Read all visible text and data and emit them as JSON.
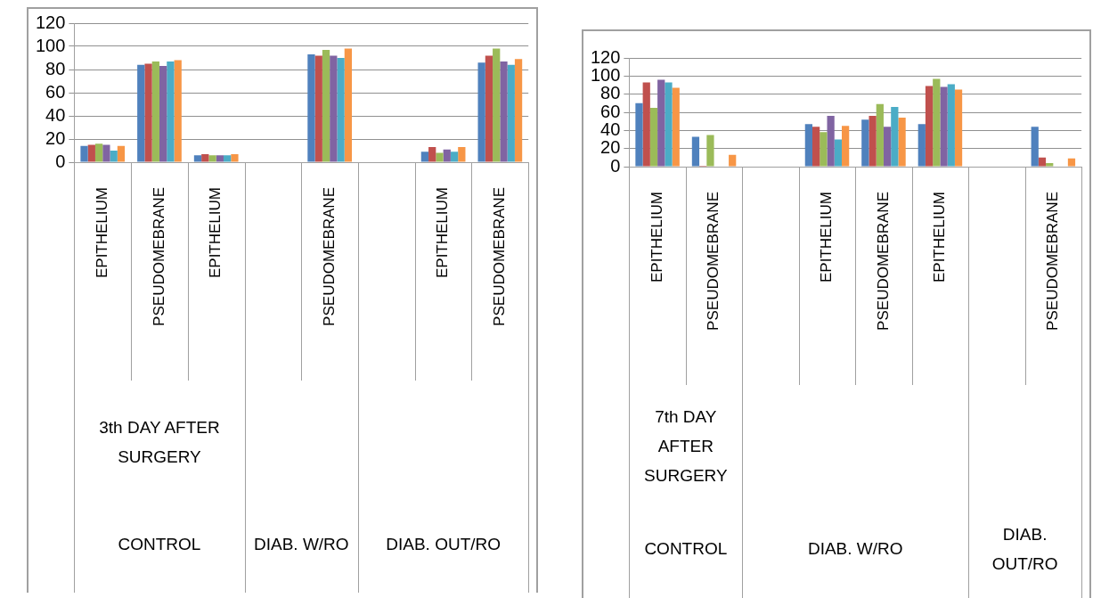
{
  "chart_data": [
    {
      "type": "bar",
      "categories": [
        "EPITHELIUM",
        "PSEUDOMEBRANE",
        "EPITHELIUM",
        null,
        "PSEUDOMEBRANE",
        null,
        "EPITHELIUM",
        "PSEUDOMEBRANE"
      ],
      "series": [
        {
          "color": "#4f81bd",
          "values": [
            14,
            84,
            6,
            null,
            93,
            null,
            9,
            86
          ]
        },
        {
          "color": "#c0504d",
          "values": [
            15,
            85,
            7,
            null,
            92,
            null,
            13,
            92
          ]
        },
        {
          "color": "#9bbb59",
          "values": [
            16,
            87,
            6,
            null,
            97,
            null,
            8,
            98
          ]
        },
        {
          "color": "#8064a2",
          "values": [
            15,
            83,
            6,
            null,
            92,
            null,
            11,
            87
          ]
        },
        {
          "color": "#4bacc6",
          "values": [
            10,
            87,
            6,
            null,
            90,
            null,
            9,
            84
          ]
        },
        {
          "color": "#f79646",
          "values": [
            14,
            88,
            7,
            null,
            98,
            null,
            13,
            89
          ]
        }
      ],
      "ylim": [
        0,
        120
      ],
      "yticks": [
        0,
        20,
        40,
        60,
        80,
        100,
        120
      ],
      "grid": "y",
      "annotations": [
        "3th DAY AFTER SURGERY",
        "CONTROL",
        "DIAB. W/RO",
        "DIAB. OUT/RO"
      ]
    },
    {
      "type": "bar",
      "categories": [
        "EPITHELIUM",
        "PSEUDOMEBRANE",
        null,
        "EPITHELIUM",
        "PSEUDOMEBRANE",
        "EPITHELIUM",
        null,
        "PSEUDOMEBRANE"
      ],
      "series": [
        {
          "color": "#4f81bd",
          "values": [
            70,
            33,
            null,
            47,
            52,
            47,
            null,
            44
          ]
        },
        {
          "color": "#c0504d",
          "values": [
            93,
            1,
            null,
            44,
            56,
            89,
            null,
            10
          ]
        },
        {
          "color": "#9bbb59",
          "values": [
            65,
            35,
            null,
            38,
            69,
            97,
            null,
            4
          ]
        },
        {
          "color": "#8064a2",
          "values": [
            96,
            null,
            null,
            56,
            44,
            88,
            null,
            null
          ]
        },
        {
          "color": "#4bacc6",
          "values": [
            93,
            null,
            null,
            30,
            66,
            91,
            null,
            null
          ]
        },
        {
          "color": "#f79646",
          "values": [
            87,
            13,
            null,
            45,
            54,
            85,
            null,
            9
          ]
        }
      ],
      "ylim": [
        0,
        120
      ],
      "yticks": [
        0,
        20,
        40,
        60,
        80,
        100,
        120
      ],
      "grid": "y",
      "annotations": [
        "7th DAY AFTER SURGERY",
        "CONTROL",
        "DIAB. W/RO",
        "DIAB. OUT/RO"
      ]
    }
  ]
}
